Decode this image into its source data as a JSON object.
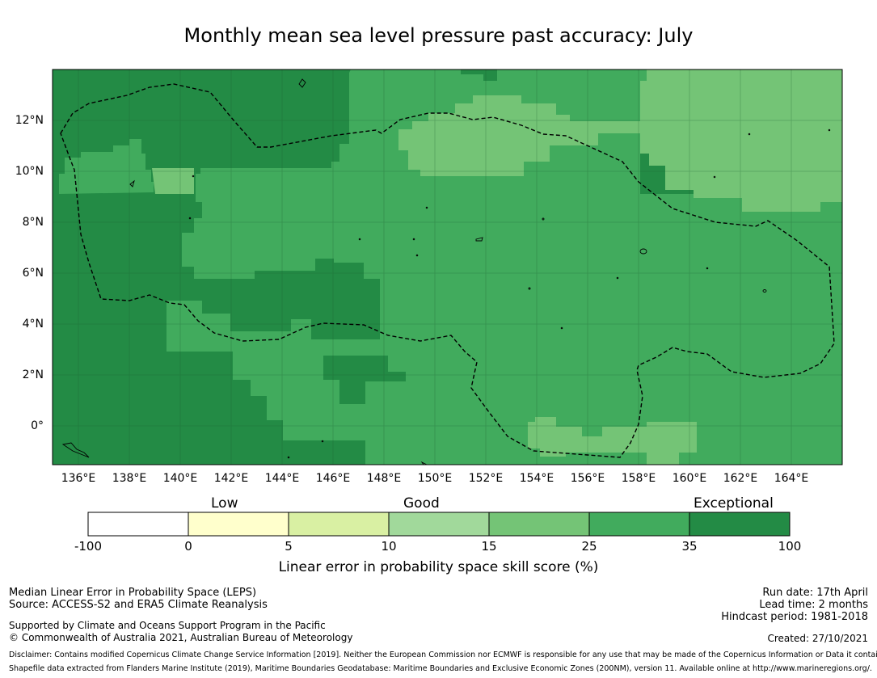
{
  "title": "Monthly mean sea level pressure past accuracy: July",
  "colors": {
    "exceptional_dark": "#238b45",
    "good_high": "#41ab5d",
    "good_mid": "#74c476",
    "good_low": "#a1d99b",
    "low_high": "#d9f0a3",
    "low": "#ffffcc",
    "none": "#ffffff"
  },
  "map": {
    "lat_labels": [
      "12°N",
      "10°N",
      "8°N",
      "6°N",
      "4°N",
      "2°N",
      "0°"
    ],
    "lon_labels": [
      "136°E",
      "138°E",
      "140°E",
      "142°E",
      "144°E",
      "146°E",
      "148°E",
      "150°E",
      "152°E",
      "154°E",
      "156°E",
      "158°E",
      "160°E",
      "162°E",
      "164°E"
    ]
  },
  "colorbar": {
    "categories": [
      "Low",
      "Good",
      "Exceptional"
    ],
    "ticks": [
      "-100",
      "0",
      "5",
      "10",
      "15",
      "25",
      "35",
      "100"
    ],
    "label": "Linear error in probability space skill score (%)"
  },
  "footer": {
    "left_line1": "Median Linear Error in Probability Space (LEPS)",
    "left_line2": "Source: ACCESS-S2 and ERA5 Climate Reanalysis",
    "left_line3": "Supported by Climate and Oceans Support Program in the Pacific",
    "left_line4": "© Commonwealth of Australia 2021, Australian Bureau of Meteorology",
    "right_line1": "Run date: 17th April",
    "right_line2": "Lead time: 2 months",
    "right_line3": "Hindcast period: 1981-2018",
    "created": "Created: 27/10/2021",
    "disclaimer": "Disclaimer: Contains modified Copernicus Climate Change Service Information [2019]. Neither the European Commission nor ECMWF is responsible for any use that may be made of the Copernicus Information or Data it contains.",
    "shapefile": "Shapefile data extracted from Flanders Marine Institute (2019), Maritime Boundaries Geodatabase: Maritime Boundaries and Exclusive Economic Zones (200NM), version 11. Available online at http://www.marineregions.org/."
  }
}
